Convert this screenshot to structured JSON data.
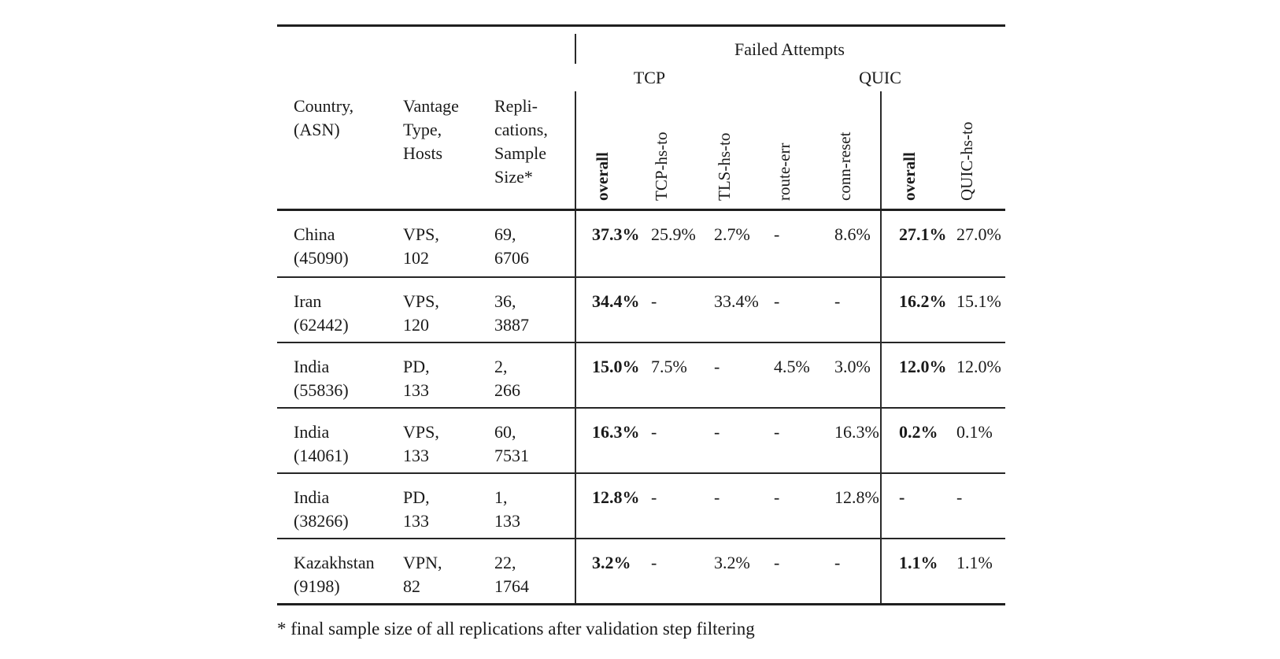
{
  "colors": {
    "text": "#1a1a1a",
    "background": "#ffffff",
    "rule": "#1f1f1f"
  },
  "table": {
    "header": {
      "failed_attempts": "Failed Attempts",
      "tcp_group": "TCP",
      "quic_group": "QUIC",
      "country_l1": "Country,",
      "country_l2": "(ASN)",
      "vantage_l1": "Vantage",
      "vantage_l2": "Type,",
      "vantage_l3": "Hosts",
      "repl_l1": "Repli-",
      "repl_l2": "cations,",
      "repl_l3": "Sample",
      "repl_l4": "Size*",
      "tcp_overall": "overall",
      "tcp_hs_to": "TCP-hs-to",
      "tls_hs_to": "TLS-hs-to",
      "route_err": "route-err",
      "conn_reset": "conn-reset",
      "quic_overall": "overall",
      "quic_hs_to": "QUIC-hs-to"
    },
    "rows": [
      {
        "country": "China",
        "asn": "(45090)",
        "vantage_type": "VPS,",
        "hosts": "102",
        "replications": "69,",
        "sample_size": "6706",
        "tcp_overall": "37.3%",
        "tcp_hs_to": "25.9%",
        "tls_hs_to": "2.7%",
        "route_err": "-",
        "conn_reset": "8.6%",
        "quic_overall": "27.1%",
        "quic_hs_to": "27.0%"
      },
      {
        "country": "Iran",
        "asn": "(62442)",
        "vantage_type": "VPS,",
        "hosts": "120",
        "replications": "36,",
        "sample_size": "3887",
        "tcp_overall": "34.4%",
        "tcp_hs_to": "-",
        "tls_hs_to": "33.4%",
        "route_err": "-",
        "conn_reset": "-",
        "quic_overall": "16.2%",
        "quic_hs_to": "15.1%"
      },
      {
        "country": "India",
        "asn": "(55836)",
        "vantage_type": "PD,",
        "hosts": "133",
        "replications": "2,",
        "sample_size": "266",
        "tcp_overall": "15.0%",
        "tcp_hs_to": "7.5%",
        "tls_hs_to": "-",
        "route_err": "4.5%",
        "conn_reset": "3.0%",
        "quic_overall": "12.0%",
        "quic_hs_to": "12.0%"
      },
      {
        "country": "India",
        "asn": "(14061)",
        "vantage_type": "VPS,",
        "hosts": "133",
        "replications": "60,",
        "sample_size": "7531",
        "tcp_overall": "16.3%",
        "tcp_hs_to": "-",
        "tls_hs_to": "-",
        "route_err": "-",
        "conn_reset": "16.3%",
        "quic_overall": "0.2%",
        "quic_hs_to": "0.1%"
      },
      {
        "country": "India",
        "asn": "(38266)",
        "vantage_type": "PD,",
        "hosts": "133",
        "replications": "1,",
        "sample_size": "133",
        "tcp_overall": "12.8%",
        "tcp_hs_to": "-",
        "tls_hs_to": "-",
        "route_err": "-",
        "conn_reset": "12.8%",
        "quic_overall": "-",
        "quic_hs_to": "-"
      },
      {
        "country": "Kazakhstan",
        "asn": "(9198)",
        "vantage_type": "VPN,",
        "hosts": "82",
        "replications": "22,",
        "sample_size": "1764",
        "tcp_overall": "3.2%",
        "tcp_hs_to": "-",
        "tls_hs_to": "3.2%",
        "route_err": "-",
        "conn_reset": "-",
        "quic_overall": "1.1%",
        "quic_hs_to": "1.1%"
      }
    ],
    "footnote": "* final sample size of all replications after validation step filtering"
  }
}
